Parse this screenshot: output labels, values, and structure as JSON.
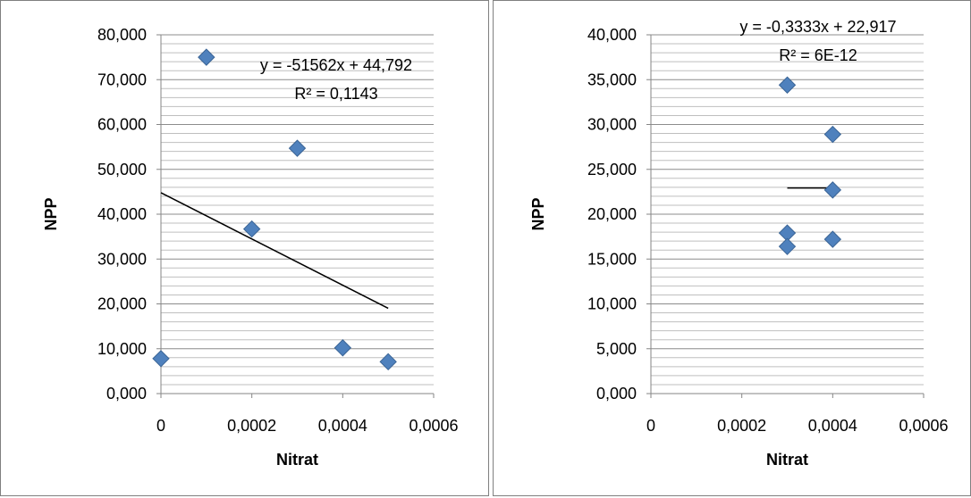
{
  "chart_data": [
    {
      "type": "scatter",
      "xlabel": "Nitrat",
      "ylabel": "NPP",
      "xlim": [
        0,
        0.0006
      ],
      "ylim": [
        0,
        80
      ],
      "x_ticks": [
        "0",
        "0,0002",
        "0,0004",
        "0,0006"
      ],
      "y_ticks": [
        "0,000",
        "10,000",
        "20,000",
        "30,000",
        "40,000",
        "50,000",
        "60,000",
        "70,000",
        "80,000"
      ],
      "points": [
        {
          "x": 0,
          "y": 7.8
        },
        {
          "x": 0.0001,
          "y": 75.0
        },
        {
          "x": 0.0002,
          "y": 36.7
        },
        {
          "x": 0.0003,
          "y": 54.7
        },
        {
          "x": 0.0004,
          "y": 10.2
        },
        {
          "x": 0.0005,
          "y": 7.1
        }
      ],
      "trendline": {
        "slope": -51562,
        "intercept": 44.792,
        "x_range": [
          0,
          0.0005
        ]
      },
      "equation": "y = -51562x + 44,792",
      "r_squared": "R² = 0,1143",
      "marker_color": "#4f81bd",
      "grid": true
    },
    {
      "type": "scatter",
      "xlabel": "Nitrat",
      "ylabel": "NPP",
      "xlim": [
        0,
        0.0006
      ],
      "ylim": [
        0,
        40
      ],
      "x_ticks": [
        "0",
        "0,0002",
        "0,0004",
        "0,0006"
      ],
      "y_ticks": [
        "0,000",
        "5,000",
        "10,000",
        "15,000",
        "20,000",
        "25,000",
        "30,000",
        "35,000",
        "40,000"
      ],
      "points": [
        {
          "x": 0.0003,
          "y": 34.4
        },
        {
          "x": 0.0003,
          "y": 17.9
        },
        {
          "x": 0.0003,
          "y": 16.4
        },
        {
          "x": 0.0004,
          "y": 28.9
        },
        {
          "x": 0.0004,
          "y": 22.7
        },
        {
          "x": 0.0004,
          "y": 17.2
        }
      ],
      "trendline": {
        "slope": -0.3333,
        "intercept": 22.917,
        "x_range": [
          0.0003,
          0.0004
        ]
      },
      "equation": "y = -0,3333x + 22,917",
      "r_squared": "R² = 6E-12",
      "marker_color": "#4f81bd",
      "grid": true
    }
  ]
}
